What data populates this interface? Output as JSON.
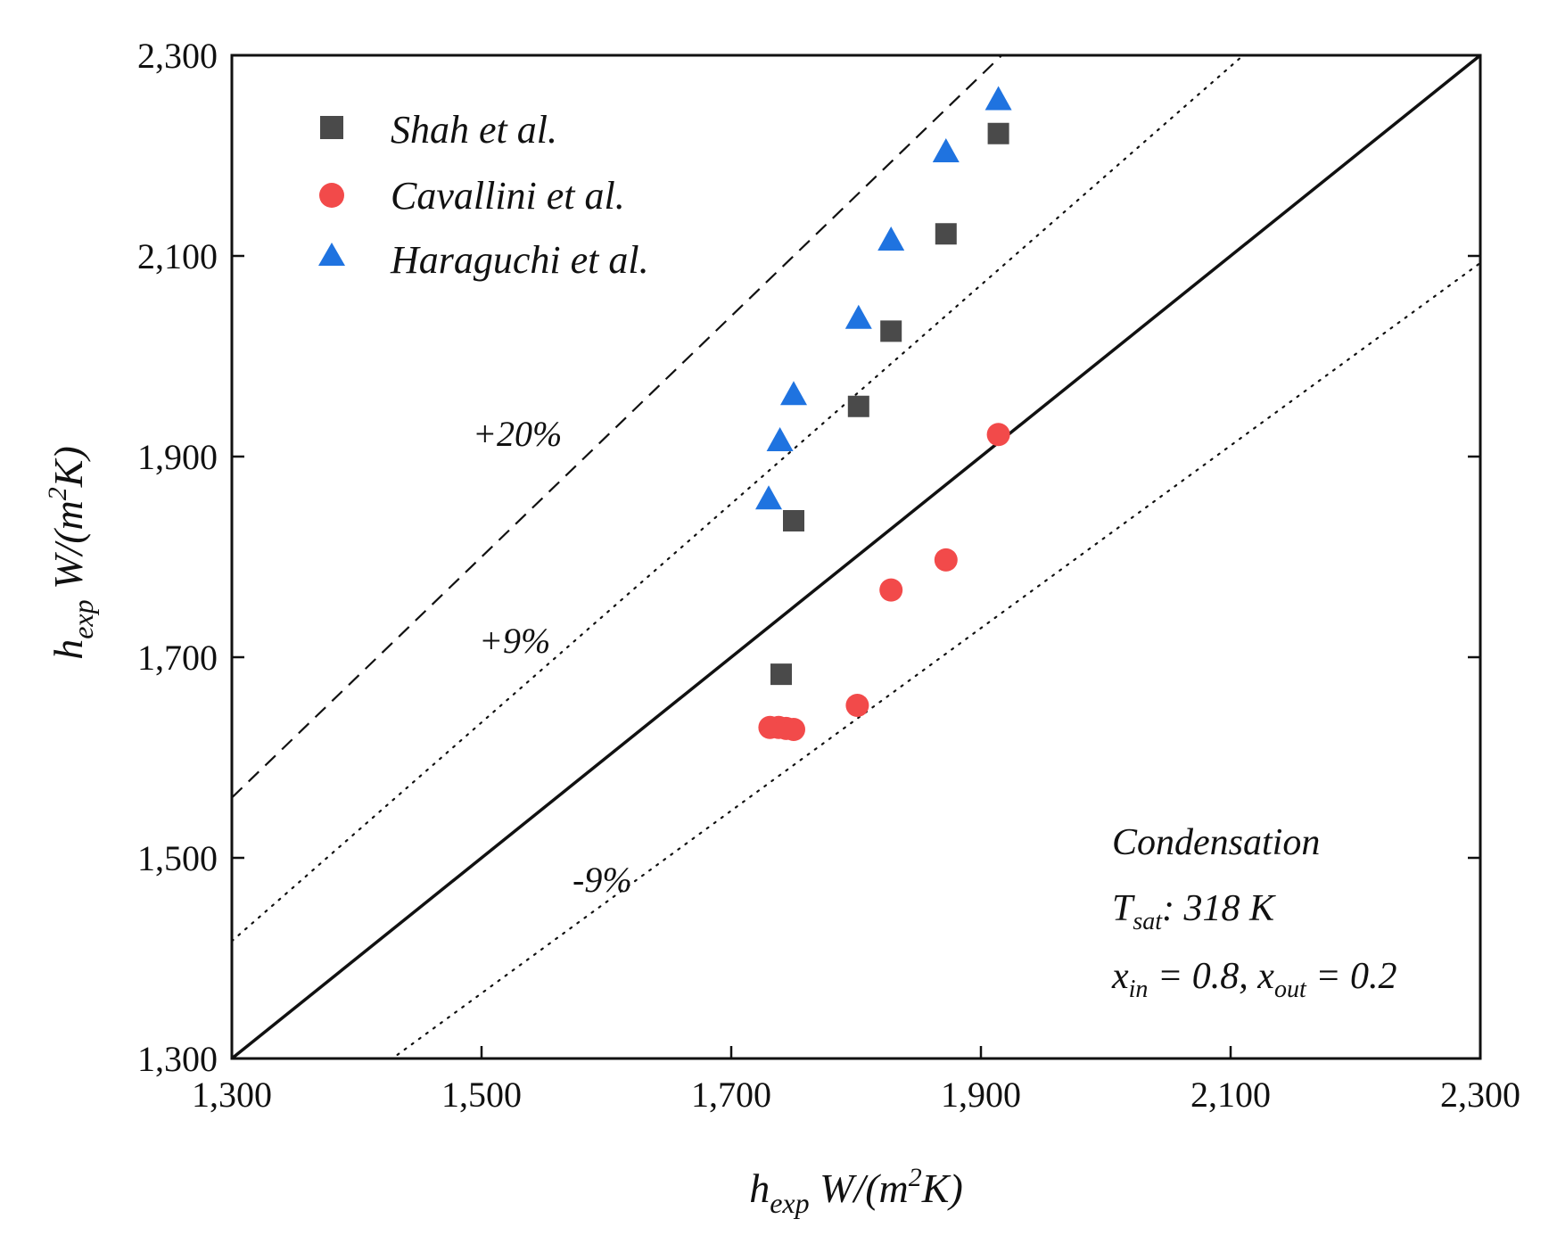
{
  "chart_data": {
    "type": "scatter",
    "title": "",
    "xlabel": {
      "main": "h",
      "sub": "exp",
      "unit_pre": " W/(m",
      "sup": "2",
      "unit_post": "K)"
    },
    "ylabel": {
      "main": "h",
      "sub": "exp",
      "unit_pre": " W/(m",
      "sup": "2",
      "unit_post": "K)"
    },
    "xlim": [
      1300,
      2300
    ],
    "ylim": [
      1300,
      2300
    ],
    "xticks": [
      1300,
      1500,
      1700,
      1900,
      2100,
      2300
    ],
    "yticks": [
      1300,
      1500,
      1700,
      1900,
      2100,
      2300
    ],
    "xtick_labels": [
      "1,300",
      "1,500",
      "1,700",
      "1,900",
      "2,100",
      "2,300"
    ],
    "ytick_labels": [
      "1,300",
      "1,500",
      "1,700",
      "1,900",
      "2,100",
      "2,300"
    ],
    "grid": false,
    "legend_position": "top-left",
    "series": [
      {
        "name": "Shah et al.",
        "marker": "square",
        "color": "#4a4a4a",
        "points": [
          [
            1740,
            1683
          ],
          [
            1750,
            1836
          ],
          [
            1802,
            1950
          ],
          [
            1828,
            2025
          ],
          [
            1872,
            2122
          ],
          [
            1914,
            2222
          ]
        ]
      },
      {
        "name": "Cavallini et al.",
        "marker": "circle",
        "color": "#f24a4a",
        "points": [
          [
            1731,
            1630
          ],
          [
            1738,
            1630
          ],
          [
            1744,
            1629
          ],
          [
            1750,
            1628
          ],
          [
            1801,
            1652
          ],
          [
            1828,
            1767
          ],
          [
            1872,
            1797
          ],
          [
            1914,
            1922
          ]
        ]
      },
      {
        "name": "Haraguchi et al.",
        "marker": "triangle",
        "color": "#1f73e0",
        "points": [
          [
            1730,
            1858
          ],
          [
            1739,
            1916
          ],
          [
            1750,
            1962
          ],
          [
            1802,
            2038
          ],
          [
            1828,
            2116
          ],
          [
            1872,
            2204
          ],
          [
            1914,
            2256
          ]
        ]
      }
    ],
    "reference_lines": [
      {
        "label": "",
        "factor": 1.0,
        "style": "solid"
      },
      {
        "label": "+20%",
        "factor": 1.2,
        "style": "dashed"
      },
      {
        "label": "+9%",
        "factor": 1.09,
        "style": "dotted"
      },
      {
        "label": "-9%",
        "factor": 0.91,
        "style": "dotted"
      }
    ],
    "annotations": {
      "condition_title": "Condensation",
      "tsat": {
        "main": "T",
        "sub": "sat",
        "rest": ": 318 K"
      },
      "quality": {
        "x1": "x",
        "sub1": "in",
        "mid": " = 0.8, ",
        "x2": "x",
        "sub2": "out",
        "end": " = 0.2"
      }
    }
  }
}
